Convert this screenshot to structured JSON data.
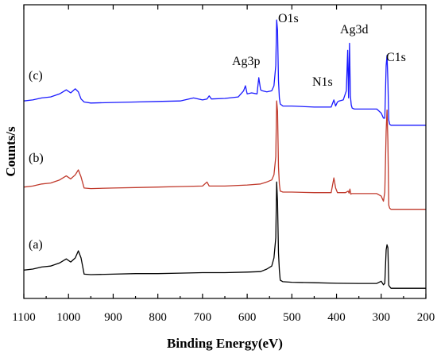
{
  "chart_data": {
    "type": "line",
    "title": "",
    "xlabel": "Binding Energy(eV)",
    "ylabel": "Counts/s",
    "xlim": [
      1100,
      200
    ],
    "x_reversed": true,
    "xticks": [
      1100,
      1000,
      900,
      800,
      700,
      600,
      500,
      400,
      300,
      200
    ],
    "yticks": [],
    "grid": false,
    "legend": "none",
    "curve_labels": [
      "(a)",
      "(b)",
      "(c)"
    ],
    "peak_labels": [
      {
        "text": "O1s",
        "x": 532
      },
      {
        "text": "Ag3d",
        "x": 370
      },
      {
        "text": "Ag3p",
        "x": 590
      },
      {
        "text": "N1s",
        "x": 405
      },
      {
        "text": "C1s",
        "x": 285
      }
    ],
    "series": [
      {
        "label": "(a)",
        "color": "#000000",
        "x": [
          1100,
          1080,
          1060,
          1040,
          1020,
          1005,
          995,
          985,
          978,
          972,
          965,
          950,
          900,
          850,
          800,
          750,
          700,
          650,
          600,
          570,
          556,
          545,
          540,
          536,
          534,
          532,
          530,
          528,
          526,
          520,
          500,
          450,
          400,
          350,
          310,
          300,
          295,
          292,
          289,
          287,
          285,
          283,
          281,
          278,
          270,
          250,
          230,
          200
        ],
        "y": [
          1.8,
          1.9,
          2.1,
          2.2,
          2.5,
          2.9,
          2.6,
          3.0,
          3.7,
          3.0,
          1.4,
          1.35,
          1.4,
          1.45,
          1.45,
          1.5,
          1.55,
          1.55,
          1.6,
          1.65,
          1.9,
          2.2,
          3.0,
          5.0,
          10.5,
          8.5,
          3.5,
          1.8,
          0.8,
          0.65,
          0.6,
          0.55,
          0.5,
          0.48,
          0.48,
          0.7,
          0.35,
          0.5,
          3.8,
          4.3,
          4.0,
          0.3,
          0.15,
          0.0,
          0.0,
          0.0,
          0.0,
          0.0
        ]
      },
      {
        "label": "(b)",
        "color": "#c0392b",
        "x": [
          1100,
          1080,
          1060,
          1040,
          1020,
          1005,
          995,
          985,
          978,
          972,
          965,
          950,
          900,
          850,
          800,
          750,
          700,
          690,
          685,
          680,
          650,
          600,
          570,
          556,
          545,
          540,
          536,
          534,
          532,
          530,
          528,
          526,
          520,
          500,
          450,
          412,
          406,
          402,
          398,
          394,
          380,
          374,
          372,
          370,
          368,
          366,
          360,
          340,
          310,
          300,
          295,
          292,
          289,
          287,
          285,
          283,
          281,
          278,
          270,
          250,
          230,
          200
        ],
        "y": [
          10.0,
          10.1,
          10.3,
          10.4,
          10.7,
          11.1,
          10.8,
          11.2,
          11.7,
          11.0,
          9.9,
          9.85,
          9.9,
          9.95,
          10.0,
          10.05,
          10.1,
          10.5,
          10.1,
          10.1,
          10.1,
          10.2,
          10.3,
          10.5,
          10.7,
          11.2,
          13.0,
          18.5,
          17.5,
          12.0,
          10.3,
          9.6,
          9.5,
          9.5,
          9.45,
          9.45,
          10.9,
          9.9,
          9.45,
          9.45,
          9.45,
          9.6,
          9.4,
          9.8,
          9.3,
          9.35,
          9.35,
          9.35,
          9.35,
          9.1,
          8.6,
          9.5,
          15.5,
          17.6,
          14.5,
          8.2,
          7.9,
          7.8,
          7.8,
          7.8,
          7.8,
          7.8
        ]
      },
      {
        "label": "(c)",
        "color": "#1a1aff",
        "x": [
          1100,
          1080,
          1060,
          1040,
          1020,
          1005,
          995,
          985,
          978,
          972,
          965,
          950,
          900,
          850,
          800,
          750,
          720,
          700,
          690,
          685,
          680,
          650,
          620,
          608,
          604,
          600,
          590,
          578,
          574,
          570,
          566,
          556,
          545,
          540,
          536,
          534,
          532,
          530,
          528,
          526,
          520,
          500,
          450,
          412,
          406,
          402,
          398,
          394,
          385,
          378,
          375,
          373,
          371,
          369,
          367,
          365,
          360,
          340,
          310,
          300,
          295,
          292,
          289,
          287,
          285,
          283,
          281,
          278,
          270,
          250,
          230,
          200
        ],
        "y": [
          18.5,
          18.6,
          18.8,
          18.9,
          19.2,
          19.6,
          19.3,
          19.7,
          19.4,
          18.7,
          18.4,
          18.3,
          18.35,
          18.4,
          18.45,
          18.5,
          18.8,
          18.6,
          18.7,
          19.0,
          18.7,
          18.75,
          18.9,
          19.5,
          20.0,
          19.2,
          19.3,
          19.2,
          20.8,
          19.6,
          19.5,
          19.4,
          19.5,
          20.0,
          22.0,
          26.5,
          25.5,
          20.5,
          18.8,
          18.2,
          18.0,
          18.0,
          17.9,
          17.9,
          18.6,
          18.0,
          18.4,
          18.5,
          18.6,
          19.5,
          23.5,
          18.8,
          24.2,
          19.0,
          18.1,
          17.8,
          17.7,
          17.7,
          17.7,
          17.3,
          16.8,
          16.8,
          22.0,
          23.0,
          20.5,
          16.6,
          16.2,
          16.1,
          16.1,
          16.1,
          16.1,
          16.1
        ]
      }
    ]
  }
}
